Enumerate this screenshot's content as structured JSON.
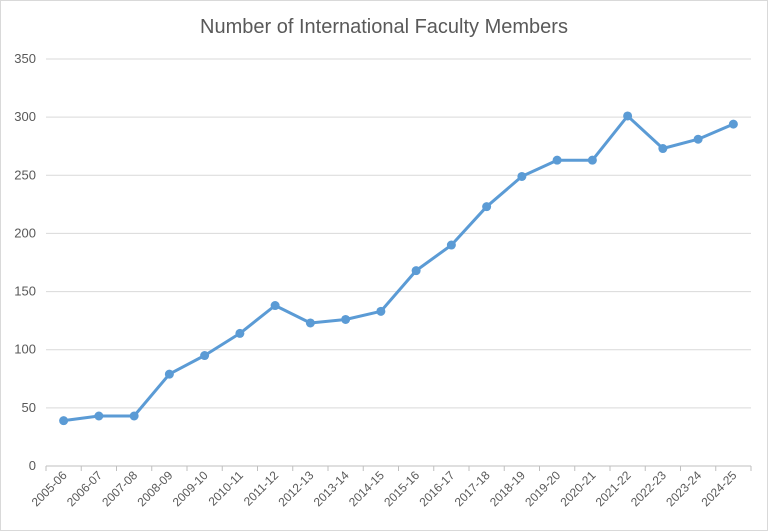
{
  "chart_data": {
    "type": "line",
    "title": "Number of International Faculty Members",
    "xlabel": "",
    "ylabel": "",
    "categories": [
      "2005-06",
      "2006-07",
      "2007-08",
      "2008-09",
      "2009-10",
      "2010-11",
      "2011-12",
      "2012-13",
      "2013-14",
      "2014-15",
      "2015-16",
      "2016-17",
      "2017-18",
      "2018-19",
      "2019-20",
      "2020-21",
      "2021-22",
      "2022-23",
      "2023-24",
      "2024-25"
    ],
    "series": [
      {
        "values": [
          39,
          43,
          43,
          79,
          95,
          114,
          138,
          123,
          126,
          133,
          168,
          190,
          223,
          249,
          263,
          263,
          301,
          273,
          281,
          294
        ],
        "color": "#5b9bd5"
      }
    ],
    "ylim": [
      0,
      350
    ],
    "yticks": [
      "0",
      "50",
      "100",
      "150",
      "200",
      "250",
      "300",
      "350"
    ],
    "grid": true,
    "legend": "none"
  }
}
